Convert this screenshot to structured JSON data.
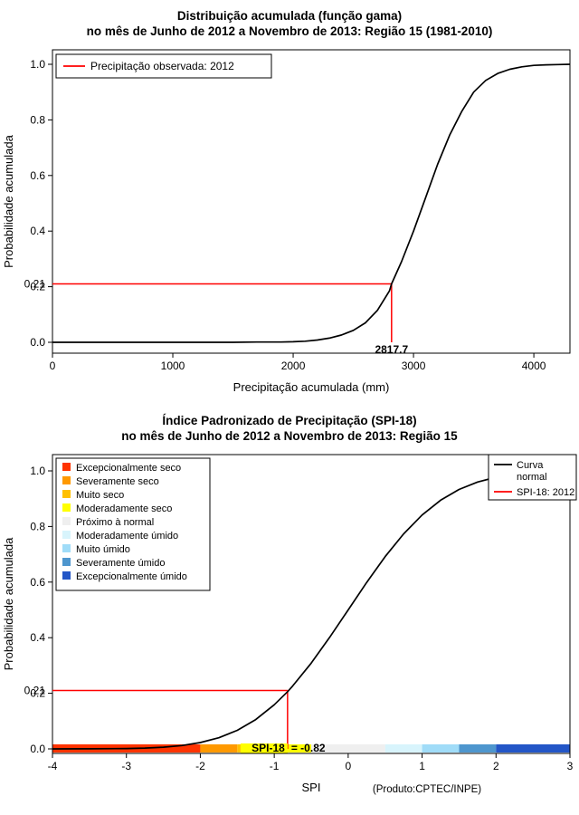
{
  "colors": {
    "background": "#FFFFFF",
    "curve": "#000000",
    "observed_red": "#FF0000",
    "highlight_yellow": "#FFFF00",
    "axis": "#000000"
  },
  "chart_data": [
    {
      "type": "line",
      "title": "Distribuição acumulada (função gama)",
      "subtitle": "no mês de Junho de 2012 a Novembro de 2013: Região 15 (1981-2010)",
      "xlabel": "Precipitação acumulada (mm)",
      "ylabel": "Probabilidade acumulada",
      "xlim": [
        0,
        4300
      ],
      "ylim": [
        0,
        1
      ],
      "xticks": [
        0,
        1000,
        2000,
        3000,
        4000
      ],
      "yticks": [
        "0.0",
        "0.2",
        "0.4",
        "0.6",
        "0.8",
        "1.0"
      ],
      "legend": [
        {
          "label": "Precipitação observada: 2012",
          "color": "#FF0000"
        }
      ],
      "marker": {
        "x": 2817.7,
        "y": 0.21,
        "x_label": "2817.7",
        "y_label": "0.21",
        "color": "#FF0000"
      },
      "series": [
        {
          "name": "gamma-cdf",
          "color": "#000000",
          "points": [
            [
              0,
              0
            ],
            [
              300,
              0
            ],
            [
              600,
              0
            ],
            [
              900,
              0
            ],
            [
              1200,
              0
            ],
            [
              1500,
              0
            ],
            [
              1700,
              0.001
            ],
            [
              1900,
              0.001
            ],
            [
              2000,
              0.002
            ],
            [
              2100,
              0.004
            ],
            [
              2200,
              0.008
            ],
            [
              2300,
              0.015
            ],
            [
              2400,
              0.026
            ],
            [
              2500,
              0.043
            ],
            [
              2600,
              0.07
            ],
            [
              2700,
              0.115
            ],
            [
              2800,
              0.185
            ],
            [
              2817.7,
              0.21
            ],
            [
              2900,
              0.29
            ],
            [
              3000,
              0.4
            ],
            [
              3100,
              0.52
            ],
            [
              3200,
              0.64
            ],
            [
              3300,
              0.745
            ],
            [
              3400,
              0.83
            ],
            [
              3500,
              0.9
            ],
            [
              3600,
              0.942
            ],
            [
              3700,
              0.967
            ],
            [
              3800,
              0.982
            ],
            [
              3900,
              0.991
            ],
            [
              4000,
              0.996
            ],
            [
              4100,
              0.998
            ],
            [
              4200,
              0.999
            ],
            [
              4300,
              1
            ]
          ]
        }
      ]
    },
    {
      "type": "line",
      "title": "Índice Padronizado de Precipitação (SPI-18)",
      "subtitle": "no mês de Junho de 2012 a Novembro de 2013: Região 15",
      "xlabel": "SPI",
      "ylabel": "Probabilidade acumulada",
      "xlim": [
        -4,
        3
      ],
      "ylim": [
        0,
        1
      ],
      "xticks": [
        -4,
        -3,
        -2,
        -1,
        0,
        1,
        2,
        3
      ],
      "yticks": [
        "0.0",
        "0.2",
        "0.4",
        "0.6",
        "0.8",
        "1.0"
      ],
      "legend_categories": [
        {
          "label": "Excepcionalmente seco",
          "color": "#FF3300"
        },
        {
          "label": "Severamente seco",
          "color": "#FF9900"
        },
        {
          "label": "Muito seco",
          "color": "#FFC000"
        },
        {
          "label": "Moderadamente seco",
          "color": "#FFFF00"
        },
        {
          "label": "Próximo à normal",
          "color": "#EFEFEF"
        },
        {
          "label": "Moderadamente úmido",
          "color": "#D8F4FC"
        },
        {
          "label": "Muito úmido",
          "color": "#A0DCF8"
        },
        {
          "label": "Severamente úmido",
          "color": "#4E96CE"
        },
        {
          "label": "Excepcionalmente úmido",
          "color": "#2356C7"
        }
      ],
      "legend_lines": [
        {
          "label_lines": [
            "Curva",
            "normal"
          ],
          "color": "#000000"
        },
        {
          "label_lines": [
            "SPI-18: 2012"
          ],
          "color": "#FF0000"
        }
      ],
      "marker": {
        "x": -0.82,
        "y": 0.21,
        "y_label": "0.21",
        "color": "#FF0000"
      },
      "annotation": {
        "highlight_text": "SPI-18",
        "rest_text": "= -0.82",
        "highlight_color": "#FFFF00"
      },
      "color_bar": [
        {
          "from": -4,
          "to": -2,
          "color": "#FF3300"
        },
        {
          "from": -2,
          "to": -1.5,
          "color": "#FF9900"
        },
        {
          "from": -1.5,
          "to": -1,
          "color": "#FFC000"
        },
        {
          "from": -1,
          "to": -0.5,
          "color": "#FFFF00"
        },
        {
          "from": -0.5,
          "to": 0.5,
          "color": "#EFEFEF"
        },
        {
          "from": 0.5,
          "to": 1,
          "color": "#D8F4FC"
        },
        {
          "from": 1,
          "to": 1.5,
          "color": "#A0DCF8"
        },
        {
          "from": 1.5,
          "to": 2,
          "color": "#4E96CE"
        },
        {
          "from": 2,
          "to": 3,
          "color": "#2356C7"
        }
      ],
      "credit": "(Produto:CPTEC/INPE)",
      "series": [
        {
          "name": "normal-cdf",
          "color": "#000000",
          "points": [
            [
              -4,
              0.0001
            ],
            [
              -3.5,
              0.0002
            ],
            [
              -3,
              0.0013
            ],
            [
              -2.75,
              0.003
            ],
            [
              -2.5,
              0.0062
            ],
            [
              -2.25,
              0.0122
            ],
            [
              -2,
              0.0228
            ],
            [
              -1.75,
              0.0401
            ],
            [
              -1.5,
              0.0668
            ],
            [
              -1.25,
              0.1056
            ],
            [
              -1,
              0.1587
            ],
            [
              -0.82,
              0.206
            ],
            [
              -0.75,
              0.2266
            ],
            [
              -0.5,
              0.3085
            ],
            [
              -0.25,
              0.4013
            ],
            [
              0,
              0.5
            ],
            [
              0.25,
              0.5987
            ],
            [
              0.5,
              0.6915
            ],
            [
              0.75,
              0.7734
            ],
            [
              1,
              0.8413
            ],
            [
              1.25,
              0.8944
            ],
            [
              1.5,
              0.9332
            ],
            [
              1.75,
              0.9599
            ],
            [
              2,
              0.9772
            ],
            [
              2.25,
              0.9878
            ],
            [
              2.5,
              0.9938
            ],
            [
              2.75,
              0.997
            ],
            [
              3,
              0.9987
            ]
          ]
        }
      ]
    }
  ]
}
